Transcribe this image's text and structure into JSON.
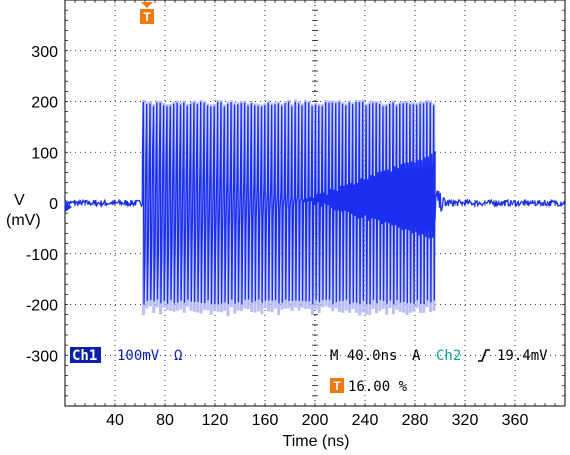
{
  "chart_data": {
    "type": "line",
    "title": "",
    "xlabel": "Time (ns)",
    "ylabel_line1": "V",
    "ylabel_line2": "(mV)",
    "xlim": [
      0,
      400
    ],
    "ylim": [
      -400,
      400
    ],
    "x_ticks": [
      40,
      80,
      120,
      160,
      200,
      240,
      280,
      320,
      360
    ],
    "y_ticks": [
      300,
      200,
      100,
      0,
      -100,
      -200,
      -300
    ],
    "grid": true,
    "series": [
      {
        "color": "#1a2ff0",
        "burst": {
          "start_ns": 62,
          "end_ns": 296,
          "pulse_period_ns": 2.7,
          "pos_peak_mv": 200,
          "neg_peak_mv": -200,
          "upper_envelope_start_mv": 100,
          "upper_envelope_end_mv": -70,
          "lower_envelope_start_mv": -110,
          "lower_envelope_end_mv": 100,
          "baseline_noise_mv": 6
        },
        "persistence_color": "#b9bff5"
      }
    ]
  },
  "readout": {
    "channel_badge": "Ch1",
    "scale": "100mV",
    "impedance": "Ω",
    "timebase": "M 40.0ns",
    "acq_mode": "A",
    "trigger_channel": "Ch2",
    "trigger_slope_icon": "rising-edge-icon",
    "trigger_level": "19.4mV",
    "trigger_marker_label": "T",
    "trigger_position": "16.00 %",
    "channel_color": "#0d1ea8",
    "trigger_color": "#f07a10",
    "ch2_color": "#0aa0a0"
  }
}
